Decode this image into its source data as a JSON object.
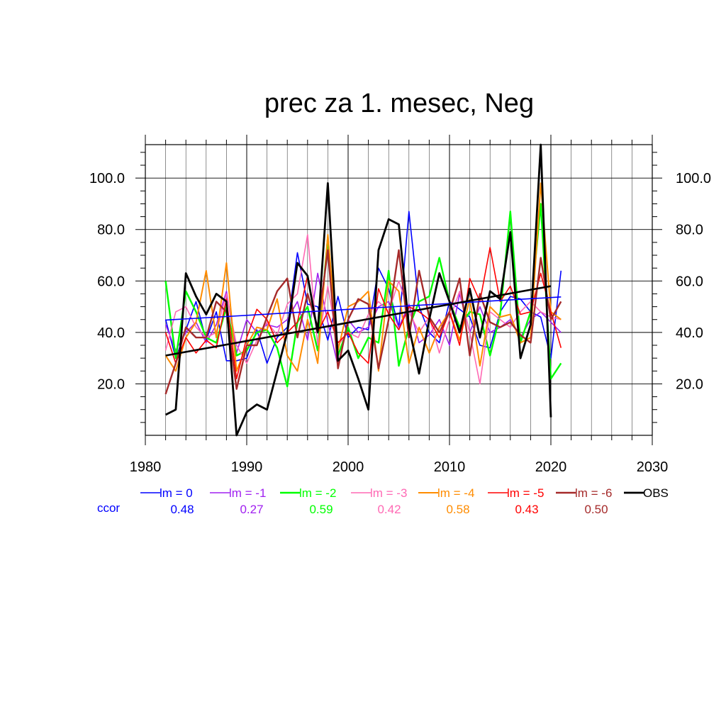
{
  "chart_data": {
    "type": "line",
    "title": "prec za 1. mesec, Neg",
    "xlabel": "",
    "ylabel": "",
    "xlim": [
      1980,
      2030
    ],
    "ylim": [
      0,
      113
    ],
    "x_ticks": [
      "1980",
      "1990",
      "2000",
      "2010",
      "2020",
      "2030"
    ],
    "y_ticks": [
      "20.0",
      "40.0",
      "60.0",
      "80.0",
      "100.0"
    ],
    "grid": true,
    "legend_position": "bottom",
    "ccor_label": "ccor",
    "x": [
      1982,
      1983,
      1984,
      1985,
      1986,
      1987,
      1988,
      1989,
      1990,
      1991,
      1992,
      1993,
      1994,
      1995,
      1996,
      1997,
      1998,
      1999,
      2000,
      2001,
      2002,
      2003,
      2004,
      2005,
      2006,
      2007,
      2008,
      2009,
      2010,
      2011,
      2012,
      2013,
      2014,
      2015,
      2016,
      2017,
      2018,
      2019,
      2020,
      2021
    ],
    "series": [
      {
        "name": "lm = 0",
        "color": "#0000ff",
        "ccor": "0.48",
        "width": 1.6,
        "values": [
          45,
          30,
          41,
          52,
          37,
          48,
          29,
          29,
          30,
          41,
          28,
          38,
          42,
          71,
          51,
          50,
          37,
          54,
          38,
          42,
          41,
          65,
          57,
          42,
          87,
          50,
          40,
          36,
          52,
          49,
          46,
          35,
          34,
          48,
          54,
          53,
          48,
          46,
          30,
          64
        ],
        "trend": [
          44.8,
          53.8
        ]
      },
      {
        "name": "lm = -1",
        "color": "#a020f0",
        "ccor": "0.27",
        "width": 1.6,
        "values": [
          43,
          33,
          40,
          44,
          36,
          43,
          56,
          32,
          45,
          40,
          43,
          42,
          45,
          52,
          37,
          63,
          44,
          27,
          45,
          40,
          42,
          50,
          52,
          42,
          51,
          36,
          39,
          45,
          35,
          55,
          40,
          50,
          40,
          42,
          45,
          38,
          45,
          48,
          44,
          40
        ]
      },
      {
        "name": "lm = -2",
        "color": "#00ff00",
        "ccor": "0.59",
        "width": 2.4,
        "values": [
          60,
          30,
          56,
          48,
          38,
          36,
          50,
          31,
          33,
          40,
          41,
          34,
          19,
          44,
          50,
          33,
          77,
          31,
          42,
          30,
          38,
          36,
          64,
          27,
          42,
          52,
          54,
          69,
          52,
          42,
          48,
          47,
          31,
          47,
          87,
          36,
          48,
          90,
          22,
          28
        ]
      },
      {
        "name": "lm = -3",
        "color": "#ff69b4",
        "ccor": "0.42",
        "width": 1.6,
        "values": [
          33,
          48,
          50,
          42,
          38,
          40,
          55,
          35,
          28,
          37,
          44,
          39,
          51,
          55,
          78,
          35,
          58,
          35,
          40,
          38,
          47,
          52,
          48,
          60,
          48,
          40,
          46,
          32,
          45,
          56,
          40,
          20,
          48,
          45,
          42,
          48,
          52,
          48,
          46,
          45
        ]
      },
      {
        "name": "lm = -4",
        "color": "#ff8c00",
        "ccor": "0.58",
        "width": 2.0,
        "values": [
          31,
          25,
          38,
          44,
          64,
          38,
          67,
          25,
          35,
          42,
          41,
          53,
          31,
          25,
          45,
          28,
          78,
          33,
          50,
          52,
          56,
          25,
          60,
          56,
          28,
          42,
          32,
          42,
          48,
          37,
          53,
          27,
          50,
          46,
          47,
          36,
          38,
          98,
          48,
          45
        ]
      },
      {
        "name": "lm = -5",
        "color": "#ff0000",
        "ccor": "0.43",
        "width": 1.6,
        "values": [
          40,
          28,
          38,
          32,
          37,
          34,
          53,
          22,
          38,
          49,
          45,
          36,
          40,
          44,
          62,
          40,
          48,
          36,
          40,
          32,
          28,
          57,
          47,
          41,
          50,
          48,
          45,
          38,
          48,
          35,
          61,
          52,
          73,
          52,
          58,
          47,
          48,
          63,
          48,
          34
        ]
      },
      {
        "name": "lm = -6",
        "color": "#a52a2a",
        "ccor": "0.50",
        "width": 2.4,
        "values": [
          16,
          28,
          42,
          38,
          38,
          52,
          48,
          18,
          35,
          35,
          46,
          56,
          61,
          38,
          55,
          42,
          72,
          26,
          45,
          53,
          51,
          26,
          45,
          72,
          38,
          64,
          46,
          40,
          48,
          61,
          31,
          55,
          44,
          42,
          44,
          39,
          36,
          69,
          45,
          52
        ]
      },
      {
        "name": "OBS",
        "color": "#000000",
        "ccor": "",
        "width": 2.8,
        "values": [
          8,
          10,
          63,
          54,
          47,
          55,
          52,
          0,
          9,
          12,
          10,
          25,
          40,
          67,
          62,
          40,
          98,
          29,
          33,
          22,
          10,
          72,
          84,
          82,
          42,
          24,
          45,
          63,
          52,
          40,
          57,
          38,
          56,
          53,
          79,
          30,
          43,
          113,
          7,
          null
        ],
        "trend": [
          31,
          58
        ]
      }
    ]
  }
}
